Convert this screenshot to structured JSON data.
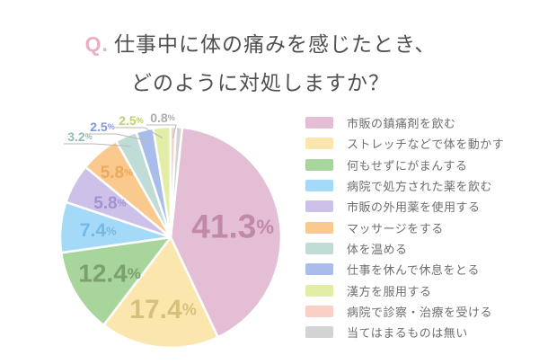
{
  "title": {
    "q_prefix": "Q.",
    "line1": "仕事中に体の痛みを感じたとき、",
    "line2": "どのように対処しますか？"
  },
  "chart_data": {
    "type": "pie",
    "title": "仕事中に体の痛みを感じたとき、どのように対処しますか？",
    "unit": "%",
    "legend_position": "right",
    "start_position": "top-clockwise",
    "segments": [
      {
        "label": "市販の鎮痛剤を飲む",
        "value": 41.3,
        "color": "#e4bed4",
        "label_color": "#c089a8",
        "label_style": "inside"
      },
      {
        "label": "ストレッチなどで体を動かす",
        "value": 17.4,
        "color": "#fbe7ae",
        "label_color": "#d8c07c",
        "label_style": "inside"
      },
      {
        "label": "何もせずにがまんする",
        "value": 12.4,
        "color": "#a8d59c",
        "label_color": "#7ba06d",
        "label_style": "inside"
      },
      {
        "label": "病院で処方された薬を飲む",
        "value": 7.4,
        "color": "#a4daf7",
        "label_color": "#74b8e6",
        "label_style": "inside"
      },
      {
        "label": "市販の外用薬を使用する",
        "value": 5.8,
        "color": "#cdc0e9",
        "label_color": "#a392d0",
        "label_style": "inside"
      },
      {
        "label": "マッサージをする",
        "value": 5.8,
        "color": "#f9c98d",
        "label_color": "#eca95e",
        "label_style": "inside"
      },
      {
        "label": "体を温める",
        "value": 3.2,
        "color": "#bfdcd7",
        "label_color": "#92bcb3",
        "label_style": "callout"
      },
      {
        "label": "仕事を休んで休息をとる",
        "value": 2.5,
        "color": "#a8bde9",
        "label_color": "#8198da",
        "label_style": "callout"
      },
      {
        "label": "漢方を服用する",
        "value": 2.5,
        "color": "#e2eda5",
        "label_color": "#bfd06e",
        "label_style": "callout"
      },
      {
        "label": "病院で診察・治療を受ける",
        "value": 0.8,
        "color": "#f9d0c5",
        "label_color": "#ababab",
        "label_style": "callout"
      },
      {
        "label": "当てはまるものは無い",
        "value": 0.9,
        "color": "#d3d3d3",
        "label_color": "#ababab",
        "label_style": "none"
      }
    ]
  }
}
